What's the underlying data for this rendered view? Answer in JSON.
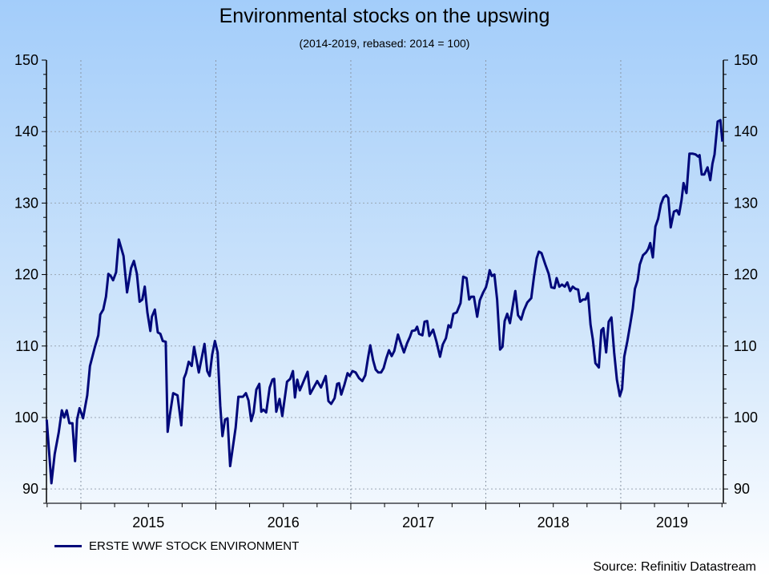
{
  "chart_data": {
    "type": "line",
    "title": "Environmental stocks on the upswing",
    "subtitle": "(2014-2019, rebased: 2014 = 100)",
    "xlabel": "",
    "ylabel": "",
    "xlim": [
      2014.745,
      2019.76
    ],
    "ylim": [
      88,
      150
    ],
    "y_ticks": [
      90,
      100,
      110,
      120,
      130,
      140,
      150
    ],
    "x_tick_labels": [
      {
        "label": "2015",
        "year": 2015
      },
      {
        "label": "2016",
        "year": 2016
      },
      {
        "label": "2017",
        "year": 2017
      },
      {
        "label": "2018",
        "year": 2018
      },
      {
        "label": "2019",
        "year": 2019
      }
    ],
    "grid": true,
    "legend_position": "bottom-left",
    "series": [
      {
        "name": "ERSTE WWF STOCK ENVIRONMENT",
        "color": "#00087a",
        "points": [
          [
            2014.747,
            99.7
          ],
          [
            2014.782,
            90.8
          ],
          [
            2014.806,
            94.9
          ],
          [
            2014.836,
            97.9
          ],
          [
            2014.859,
            101.0
          ],
          [
            2014.877,
            100.0
          ],
          [
            2014.895,
            101.0
          ],
          [
            2014.915,
            99.2
          ],
          [
            2014.937,
            99.2
          ],
          [
            2014.957,
            93.9
          ],
          [
            2014.972,
            99.7
          ],
          [
            2014.99,
            101.3
          ],
          [
            2015.016,
            99.9
          ],
          [
            2015.047,
            103.1
          ],
          [
            2015.067,
            107.2
          ],
          [
            2015.103,
            109.8
          ],
          [
            2015.129,
            111.5
          ],
          [
            2015.144,
            114.4
          ],
          [
            2015.166,
            115.1
          ],
          [
            2015.186,
            116.9
          ],
          [
            2015.204,
            120.1
          ],
          [
            2015.221,
            119.8
          ],
          [
            2015.239,
            119.2
          ],
          [
            2015.261,
            120.3
          ],
          [
            2015.281,
            124.9
          ],
          [
            2015.316,
            122.6
          ],
          [
            2015.342,
            117.5
          ],
          [
            2015.372,
            120.9
          ],
          [
            2015.393,
            121.9
          ],
          [
            2015.415,
            120.1
          ],
          [
            2015.435,
            116.2
          ],
          [
            2015.455,
            116.5
          ],
          [
            2015.473,
            118.3
          ],
          [
            2015.493,
            114.7
          ],
          [
            2015.515,
            112.1
          ],
          [
            2015.526,
            114.1
          ],
          [
            2015.548,
            115.1
          ],
          [
            2015.57,
            111.9
          ],
          [
            2015.589,
            111.7
          ],
          [
            2015.607,
            110.7
          ],
          [
            2015.629,
            110.6
          ],
          [
            2015.643,
            98.0
          ],
          [
            2015.657,
            100.1
          ],
          [
            2015.684,
            103.4
          ],
          [
            2015.716,
            103.1
          ],
          [
            2015.744,
            98.9
          ],
          [
            2015.764,
            105.5
          ],
          [
            2015.779,
            106.2
          ],
          [
            2015.799,
            107.8
          ],
          [
            2015.821,
            107.2
          ],
          [
            2015.839,
            109.9
          ],
          [
            2015.874,
            106.3
          ],
          [
            2015.916,
            110.3
          ],
          [
            2015.936,
            106.5
          ],
          [
            2015.954,
            105.8
          ],
          [
            2015.973,
            108.8
          ],
          [
            2015.993,
            110.7
          ],
          [
            2016.013,
            109.1
          ],
          [
            2016.033,
            101.6
          ],
          [
            2016.049,
            97.4
          ],
          [
            2016.068,
            99.7
          ],
          [
            2016.086,
            99.9
          ],
          [
            2016.106,
            93.2
          ],
          [
            2016.147,
            98.6
          ],
          [
            2016.167,
            102.9
          ],
          [
            2016.201,
            102.9
          ],
          [
            2016.223,
            103.4
          ],
          [
            2016.242,
            102.4
          ],
          [
            2016.262,
            99.5
          ],
          [
            2016.28,
            100.7
          ],
          [
            2016.3,
            103.9
          ],
          [
            2016.322,
            104.7
          ],
          [
            2016.337,
            100.8
          ],
          [
            2016.353,
            101.1
          ],
          [
            2016.373,
            100.7
          ],
          [
            2016.399,
            104.2
          ],
          [
            2016.419,
            105.3
          ],
          [
            2016.432,
            105.4
          ],
          [
            2016.448,
            100.8
          ],
          [
            2016.472,
            102.6
          ],
          [
            2016.492,
            100.2
          ],
          [
            2016.527,
            105.0
          ],
          [
            2016.551,
            105.4
          ],
          [
            2016.571,
            106.5
          ],
          [
            2016.586,
            102.8
          ],
          [
            2016.603,
            105.3
          ],
          [
            2016.622,
            103.8
          ],
          [
            2016.64,
            104.6
          ],
          [
            2016.68,
            106.4
          ],
          [
            2016.699,
            103.3
          ],
          [
            2016.725,
            104.2
          ],
          [
            2016.751,
            105.1
          ],
          [
            2016.779,
            104.2
          ],
          [
            2016.814,
            105.8
          ],
          [
            2016.834,
            102.3
          ],
          [
            2016.854,
            101.9
          ],
          [
            2016.88,
            102.7
          ],
          [
            2016.899,
            104.7
          ],
          [
            2016.913,
            104.8
          ],
          [
            2016.929,
            103.2
          ],
          [
            2016.953,
            104.6
          ],
          [
            2016.976,
            106.2
          ],
          [
            2016.992,
            105.8
          ],
          [
            2017.012,
            106.5
          ],
          [
            2017.036,
            106.3
          ],
          [
            2017.061,
            105.5
          ],
          [
            2017.085,
            105.1
          ],
          [
            2017.107,
            105.9
          ],
          [
            2017.127,
            108.3
          ],
          [
            2017.144,
            110.1
          ],
          [
            2017.165,
            108.0
          ],
          [
            2017.184,
            106.7
          ],
          [
            2017.204,
            106.3
          ],
          [
            2017.224,
            106.3
          ],
          [
            2017.243,
            106.9
          ],
          [
            2017.263,
            108.3
          ],
          [
            2017.283,
            109.4
          ],
          [
            2017.303,
            108.6
          ],
          [
            2017.322,
            109.3
          ],
          [
            2017.349,
            111.6
          ],
          [
            2017.372,
            110.3
          ],
          [
            2017.394,
            109.1
          ],
          [
            2017.417,
            110.4
          ],
          [
            2017.438,
            111.3
          ],
          [
            2017.453,
            112.1
          ],
          [
            2017.477,
            112.2
          ],
          [
            2017.491,
            112.7
          ],
          [
            2017.506,
            111.7
          ],
          [
            2017.53,
            111.5
          ],
          [
            2017.546,
            113.4
          ],
          [
            2017.566,
            113.5
          ],
          [
            2017.582,
            111.4
          ],
          [
            2017.61,
            112.3
          ],
          [
            2017.635,
            110.6
          ],
          [
            2017.661,
            108.5
          ],
          [
            2017.681,
            110.2
          ],
          [
            2017.705,
            111.1
          ],
          [
            2017.724,
            112.9
          ],
          [
            2017.74,
            112.6
          ],
          [
            2017.76,
            114.5
          ],
          [
            2017.784,
            114.7
          ],
          [
            2017.813,
            116.0
          ],
          [
            2017.833,
            119.7
          ],
          [
            2017.857,
            119.5
          ],
          [
            2017.877,
            116.5
          ],
          [
            2017.892,
            116.9
          ],
          [
            2017.912,
            116.9
          ],
          [
            2017.936,
            114.1
          ],
          [
            2017.956,
            116.4
          ],
          [
            2017.981,
            117.5
          ],
          [
            2018.001,
            118.2
          ],
          [
            2018.017,
            119.4
          ],
          [
            2018.029,
            120.6
          ],
          [
            2018.045,
            119.8
          ],
          [
            2018.064,
            120.0
          ],
          [
            2018.084,
            116.5
          ],
          [
            2018.106,
            109.5
          ],
          [
            2018.124,
            109.9
          ],
          [
            2018.14,
            113.5
          ],
          [
            2018.159,
            114.5
          ],
          [
            2018.179,
            113.2
          ],
          [
            2018.203,
            116.0
          ],
          [
            2018.219,
            117.7
          ],
          [
            2018.239,
            114.3
          ],
          [
            2018.262,
            113.7
          ],
          [
            2018.282,
            115.0
          ],
          [
            2018.308,
            116.1
          ],
          [
            2018.337,
            116.7
          ],
          [
            2018.357,
            119.7
          ],
          [
            2018.377,
            122.3
          ],
          [
            2018.393,
            123.2
          ],
          [
            2018.413,
            123.0
          ],
          [
            2018.441,
            121.4
          ],
          [
            2018.466,
            120.1
          ],
          [
            2018.486,
            118.2
          ],
          [
            2018.509,
            118.1
          ],
          [
            2018.525,
            119.5
          ],
          [
            2018.545,
            118.3
          ],
          [
            2018.565,
            118.6
          ],
          [
            2018.585,
            118.3
          ],
          [
            2018.604,
            118.9
          ],
          [
            2018.625,
            117.7
          ],
          [
            2018.644,
            118.3
          ],
          [
            2018.664,
            118.0
          ],
          [
            2018.684,
            117.9
          ],
          [
            2018.699,
            116.2
          ],
          [
            2018.72,
            116.5
          ],
          [
            2018.739,
            116.5
          ],
          [
            2018.757,
            117.4
          ],
          [
            2018.776,
            113.0
          ],
          [
            2018.793,
            110.9
          ],
          [
            2018.812,
            107.6
          ],
          [
            2018.838,
            107.0
          ],
          [
            2018.856,
            112.2
          ],
          [
            2018.871,
            112.5
          ],
          [
            2018.892,
            109.1
          ],
          [
            2018.911,
            113.4
          ],
          [
            2018.931,
            114.0
          ],
          [
            2018.951,
            109.1
          ],
          [
            2018.971,
            105.3
          ],
          [
            2018.993,
            103.0
          ],
          [
            2019.01,
            104.0
          ],
          [
            2019.026,
            108.5
          ],
          [
            2019.049,
            110.7
          ],
          [
            2019.07,
            113.0
          ],
          [
            2019.089,
            115.2
          ],
          [
            2019.105,
            118.0
          ],
          [
            2019.125,
            119.2
          ],
          [
            2019.141,
            121.4
          ],
          [
            2019.165,
            122.7
          ],
          [
            2019.188,
            123.1
          ],
          [
            2019.204,
            123.6
          ],
          [
            2019.218,
            124.4
          ],
          [
            2019.238,
            122.4
          ],
          [
            2019.257,
            126.7
          ],
          [
            2019.277,
            127.8
          ],
          [
            2019.297,
            129.8
          ],
          [
            2019.317,
            130.8
          ],
          [
            2019.337,
            131.1
          ],
          [
            2019.352,
            130.7
          ],
          [
            2019.37,
            126.6
          ],
          [
            2019.394,
            128.8
          ],
          [
            2019.416,
            129.0
          ],
          [
            2019.432,
            128.4
          ],
          [
            2019.45,
            130.4
          ],
          [
            2019.465,
            132.8
          ],
          [
            2019.487,
            131.4
          ],
          [
            2019.509,
            136.9
          ],
          [
            2019.534,
            136.9
          ],
          [
            2019.554,
            136.8
          ],
          [
            2019.574,
            136.5
          ],
          [
            2019.584,
            136.7
          ],
          [
            2019.6,
            134.0
          ],
          [
            2019.619,
            134.0
          ],
          [
            2019.643,
            135.0
          ],
          [
            2019.663,
            133.2
          ],
          [
            2019.679,
            135.5
          ],
          [
            2019.695,
            136.8
          ],
          [
            2019.718,
            141.4
          ],
          [
            2019.738,
            141.6
          ],
          [
            2019.753,
            138.6
          ]
        ]
      }
    ],
    "source": "Source: Refinitiv Datastream"
  }
}
